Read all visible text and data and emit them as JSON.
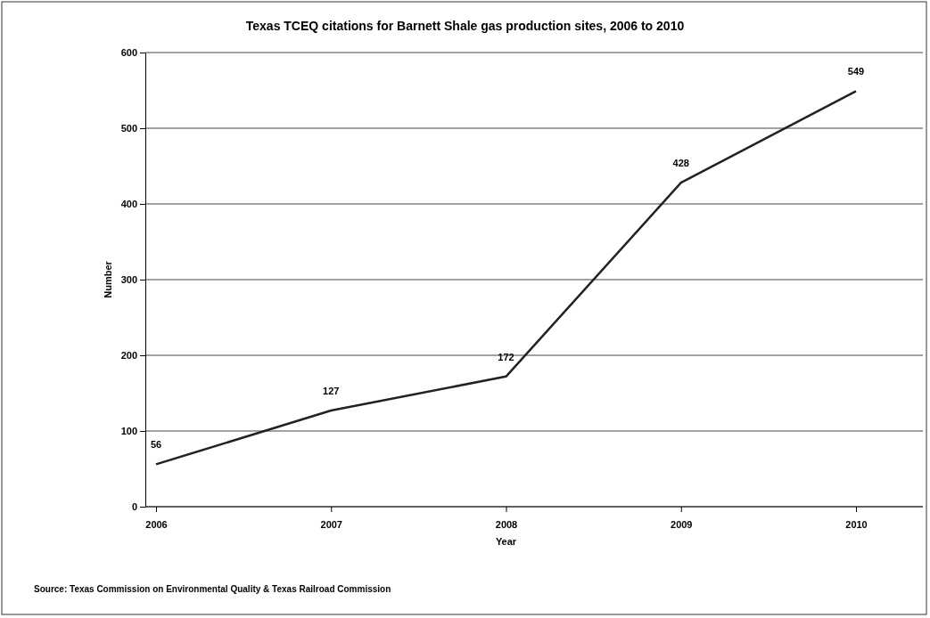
{
  "chart_data": {
    "type": "line",
    "title": "Texas TCEQ citations for Barnett Shale gas production sites, 2006 to 2010",
    "xlabel": "Year",
    "ylabel": "Number",
    "categories": [
      "2006",
      "2007",
      "2008",
      "2009",
      "2010"
    ],
    "series": [
      {
        "color": "#222222",
        "values": [
          56,
          127,
          172,
          428,
          549
        ]
      }
    ],
    "ylim": [
      0,
      600
    ],
    "yticks": [
      0,
      100,
      200,
      300,
      400,
      500,
      600
    ],
    "grid": "y",
    "data_labels": true,
    "marker": "none",
    "line_style": "solid",
    "annotations": [
      "Source: Texas Commission on Environmental Quality & Texas Railroad Commission"
    ]
  }
}
